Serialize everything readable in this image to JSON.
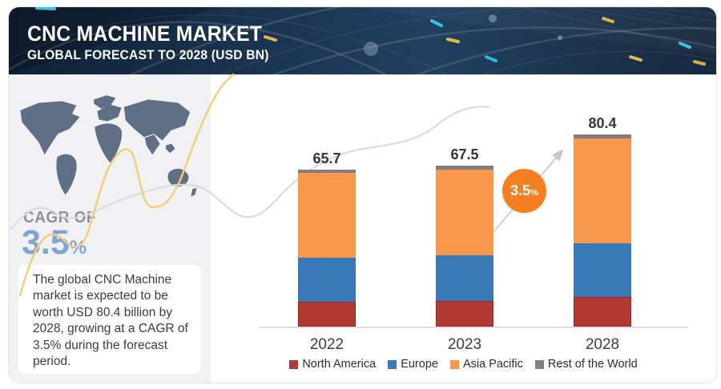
{
  "header": {
    "title": "CNC MACHINE MARKET",
    "subtitle": "GLOBAL FORECAST TO 2028 (USD BN)"
  },
  "sidebar": {
    "cagr_label": "CAGR OF",
    "cagr_value": "3.5",
    "cagr_unit": "%",
    "description": "The global CNC Machine market is expected to be worth USD 80.4 billion by 2028, growing at a CAGR of 3.5% during the forecast period."
  },
  "annotation": {
    "value": "3.5",
    "unit": "%"
  },
  "chart_data": {
    "type": "bar",
    "stacked": true,
    "title": "CNC Machine Market",
    "subtitle": "Global forecast to 2028",
    "unit": "USD BN",
    "cagr": "3.5%",
    "categories": [
      "2022",
      "2023",
      "2028"
    ],
    "totals": [
      65.7,
      67.5,
      80.4
    ],
    "series": [
      {
        "name": "North America",
        "color": "#b23a32",
        "border": "#97271f",
        "values": [
          10.4,
          10.7,
          12.4
        ]
      },
      {
        "name": "Europe",
        "color": "#3a79b7",
        "border": "#3a79b7",
        "values": [
          18.5,
          19.1,
          22.4
        ]
      },
      {
        "name": "Asia Pacific",
        "color": "#f8964b",
        "border": "#f8964b",
        "values": [
          35.5,
          36.0,
          43.9
        ]
      },
      {
        "name": "Rest of the World",
        "color": "#7f7f7f",
        "border": "#7f7f7f",
        "values": [
          1.3,
          1.7,
          1.7
        ]
      }
    ],
    "legend_position": "bottom",
    "ylim": [
      0,
      85
    ],
    "grid": false
  },
  "colors": {
    "header_bg": "#16314d",
    "panel_bg": "#f1f1f4",
    "map_fill": "#5f6f85",
    "cagr_blue": "#7ba6d8",
    "cagr_gray": "#8e9196",
    "growth_circle": "#f57e20",
    "axis_line": "#dddde0",
    "curve_yellow": "#f6cd74",
    "curve_gray": "#dcdcde",
    "arrow_gray": "#c6c6ca"
  }
}
